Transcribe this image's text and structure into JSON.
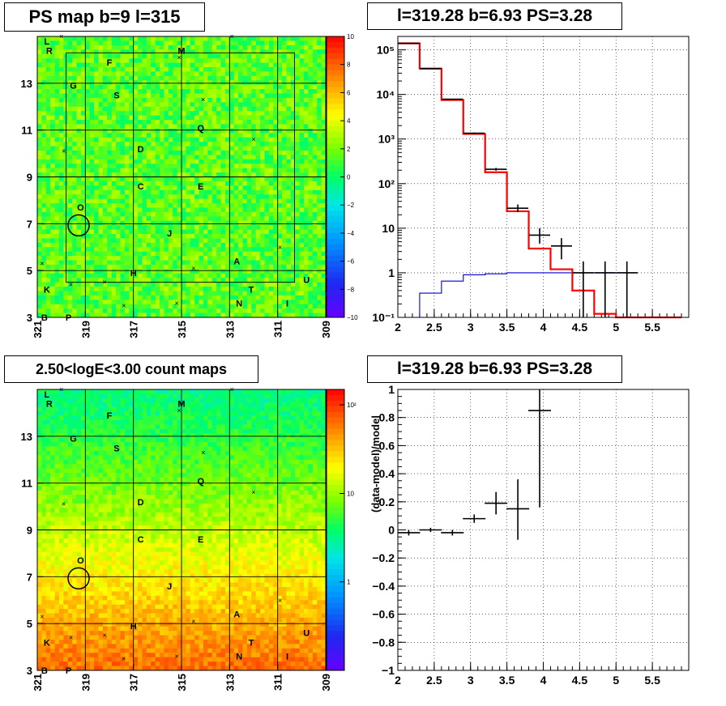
{
  "panels": {
    "map_top": {
      "title": "PS map b=9 l=315"
    },
    "spectrum": {
      "title": "l=319.28 b=6.93 PS=3.28"
    },
    "map_bottom": {
      "title": "2.50<logE<3.00 count maps"
    },
    "residual": {
      "title": "l=319.28 b=6.93 PS=3.28"
    }
  },
  "colors": {
    "data": "#000000",
    "model": "#ff0000",
    "background_model": "#0000cc",
    "grid_line": "#000000"
  },
  "chart_data": [
    {
      "name": "ps_map",
      "type": "heatmap",
      "title": "PS map b=9 l=315",
      "x_ticks": [
        "321",
        "319",
        "317",
        "315",
        "313",
        "311",
        "309"
      ],
      "xlim": [
        321,
        309
      ],
      "y_ticks": [
        "3",
        "5",
        "7",
        "9",
        "11",
        "13"
      ],
      "ylim": [
        3,
        15
      ],
      "colorbar": {
        "min": -10,
        "max": 10,
        "ticks": [
          "10",
          "8",
          "6",
          "4",
          "2",
          "0",
          "−2",
          "−4",
          "−6",
          "−8",
          "−10"
        ],
        "scale": "linear"
      },
      "mean_value": 1.5,
      "source_labels": [
        {
          "text": "L",
          "l": 320.6,
          "b": 14.8
        },
        {
          "text": "R",
          "l": 320.5,
          "b": 14.4
        },
        {
          "text": "F",
          "l": 318.0,
          "b": 13.9
        },
        {
          "text": "M",
          "l": 315.0,
          "b": 14.4
        },
        {
          "text": "G",
          "l": 319.5,
          "b": 12.9
        },
        {
          "text": "S",
          "l": 317.7,
          "b": 12.5
        },
        {
          "text": "Q",
          "l": 314.2,
          "b": 11.1
        },
        {
          "text": "D",
          "l": 316.7,
          "b": 10.2
        },
        {
          "text": "C",
          "l": 316.7,
          "b": 8.6
        },
        {
          "text": "E",
          "l": 314.2,
          "b": 8.6
        },
        {
          "text": "O",
          "l": 319.2,
          "b": 7.7
        },
        {
          "text": "J",
          "l": 315.5,
          "b": 6.6
        },
        {
          "text": "A",
          "l": 312.7,
          "b": 5.4
        },
        {
          "text": "H",
          "l": 317.0,
          "b": 4.9
        },
        {
          "text": "U",
          "l": 309.8,
          "b": 4.6
        },
        {
          "text": "K",
          "l": 320.6,
          "b": 4.2
        },
        {
          "text": "T",
          "l": 312.1,
          "b": 4.2
        },
        {
          "text": "N",
          "l": 312.6,
          "b": 3.6
        },
        {
          "text": "I",
          "l": 310.6,
          "b": 3.6
        },
        {
          "text": "B",
          "l": 320.7,
          "b": 3.0
        },
        {
          "text": "P",
          "l": 319.7,
          "b": 3.0
        }
      ],
      "markers": [
        {
          "l": 320.0,
          "b": 15.0
        },
        {
          "l": 312.9,
          "b": 15.0
        },
        {
          "l": 315.1,
          "b": 14.1
        },
        {
          "l": 314.1,
          "b": 12.3
        },
        {
          "l": 319.9,
          "b": 10.1
        },
        {
          "l": 312.0,
          "b": 10.6
        },
        {
          "l": 314.5,
          "b": 5.1
        },
        {
          "l": 320.8,
          "b": 5.3
        },
        {
          "l": 319.6,
          "b": 4.4
        },
        {
          "l": 318.2,
          "b": 4.5
        },
        {
          "l": 317.4,
          "b": 3.5
        },
        {
          "l": 315.2,
          "b": 3.6
        },
        {
          "l": 310.9,
          "b": 6.0
        }
      ],
      "roi_box": {
        "l1": 319.8,
        "l2": 310.3,
        "b1": 4.5,
        "b2": 14.3
      },
      "source_circle": {
        "l": 319.28,
        "b": 6.93,
        "radius_deg": 0.45
      }
    },
    {
      "name": "spectrum",
      "type": "line",
      "title": "l=319.28 b=6.93 PS=3.28",
      "yscale": "log",
      "xlim": [
        2,
        6
      ],
      "ylim": [
        0.1,
        200000
      ],
      "x_ticks": [
        "2",
        "2.5",
        "3",
        "3.5",
        "4",
        "4.5",
        "5",
        "5.5"
      ],
      "y_ticks": [
        "10⁻¹",
        "1",
        "10",
        "10²",
        "10³",
        "10⁴",
        "10⁵"
      ],
      "grid": true,
      "bin_edges": [
        2.0,
        2.3,
        2.6,
        2.9,
        3.2,
        3.5,
        3.8,
        4.1,
        4.4,
        4.7,
        5.0,
        5.3,
        5.6,
        5.9
      ],
      "series": [
        {
          "kind": "model_step",
          "values": [
            140000,
            38000,
            7500,
            1300,
            180,
            24,
            3.5,
            1.2,
            0.4,
            0.12,
            0.1,
            0.1,
            0.1
          ]
        },
        {
          "kind": "data_points",
          "points": [
            {
              "x": 2.15,
              "y": 140000,
              "ylo": 140000,
              "yhi": 140000
            },
            {
              "x": 2.45,
              "y": 38000,
              "ylo": 38000,
              "yhi": 38000
            },
            {
              "x": 2.75,
              "y": 7800,
              "ylo": 7800,
              "yhi": 7800
            },
            {
              "x": 3.05,
              "y": 1350,
              "ylo": 1300,
              "yhi": 1400
            },
            {
              "x": 3.35,
              "y": 210,
              "ylo": 195,
              "yhi": 225
            },
            {
              "x": 3.65,
              "y": 28,
              "ylo": 23,
              "yhi": 34
            },
            {
              "x": 3.95,
              "y": 7,
              "ylo": 4.5,
              "yhi": 10
            },
            {
              "x": 4.25,
              "y": 4,
              "ylo": 2,
              "yhi": 6
            },
            {
              "x": 4.55,
              "y": 1,
              "ylo": 0.1,
              "yhi": 1.8
            },
            {
              "x": 4.85,
              "y": 1,
              "ylo": 0.1,
              "yhi": 1.8
            },
            {
              "x": 5.15,
              "y": 1,
              "ylo": 0.1,
              "yhi": 1.8
            }
          ]
        },
        {
          "kind": "background_step",
          "values": [
            0.05,
            0.35,
            0.65,
            0.9,
            0.95,
            1,
            1,
            1,
            1,
            1,
            1,
            null,
            null
          ]
        }
      ]
    },
    {
      "name": "count_map",
      "type": "heatmap",
      "title": "2.50<logE<3.00 count maps",
      "x_ticks": [
        "321",
        "319",
        "317",
        "315",
        "313",
        "311",
        "309"
      ],
      "xlim": [
        321,
        309
      ],
      "y_ticks": [
        "3",
        "5",
        "7",
        "9",
        "11",
        "13"
      ],
      "ylim": [
        3,
        15
      ],
      "colorbar": {
        "scale": "log",
        "min": 0.1,
        "max": 150,
        "ticks": [
          "10²",
          "10",
          "1"
        ]
      },
      "count_top": 3.5,
      "count_bottom": 70
    },
    {
      "name": "residual",
      "type": "scatter",
      "title": "l=319.28 b=6.93 PS=3.28",
      "ylabel": "(data-model)/model",
      "xlim": [
        2,
        6
      ],
      "ylim": [
        -1,
        1
      ],
      "x_ticks": [
        "2",
        "2.5",
        "3",
        "3.5",
        "4",
        "4.5",
        "5",
        "5.5"
      ],
      "y_ticks": [
        "1",
        "0.8",
        "0.6",
        "0.4",
        "0.2",
        "0",
        "−0.2",
        "−0.4",
        "−0.6",
        "−0.8",
        "−1"
      ],
      "grid": true,
      "points": [
        {
          "x": 2.15,
          "y": -0.02,
          "ylo": -0.04,
          "yhi": 0.0
        },
        {
          "x": 2.45,
          "y": 0.0,
          "ylo": -0.015,
          "yhi": 0.015
        },
        {
          "x": 2.75,
          "y": -0.02,
          "ylo": -0.04,
          "yhi": 0.0
        },
        {
          "x": 3.05,
          "y": 0.08,
          "ylo": 0.05,
          "yhi": 0.11
        },
        {
          "x": 3.35,
          "y": 0.19,
          "ylo": 0.11,
          "yhi": 0.27
        },
        {
          "x": 3.65,
          "y": 0.15,
          "ylo": -0.07,
          "yhi": 0.36
        },
        {
          "x": 3.95,
          "y": 0.85,
          "ylo": 0.16,
          "yhi": 1.0
        }
      ]
    }
  ]
}
